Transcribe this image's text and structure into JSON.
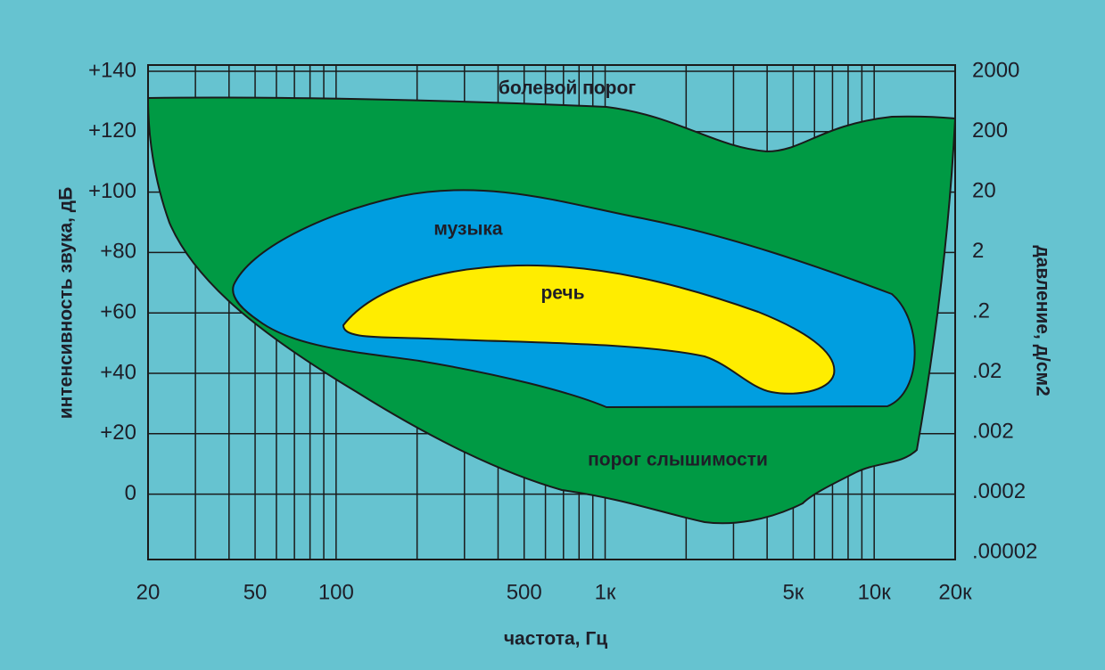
{
  "labels": {
    "pain_threshold": "болевой порог",
    "music": "музыка",
    "speech": "речь",
    "hearing_threshold": "порог слышимости"
  },
  "axes": {
    "left_title": "интенсивность звука, дБ",
    "right_title": "давление, д/см2",
    "bottom_title": "частота, Гц",
    "left_ticks": [
      "+140",
      "+120",
      "+100",
      "+80",
      "+60",
      "+40",
      "+20",
      "0"
    ],
    "right_ticks": [
      "2000",
      "200",
      "20",
      "2",
      ".2",
      ".02",
      ".002",
      ".0002",
      ".00002"
    ],
    "bottom_ticks": [
      "20",
      "50",
      "100",
      "500",
      "1к",
      "5к",
      "10к",
      "20к"
    ]
  }
}
